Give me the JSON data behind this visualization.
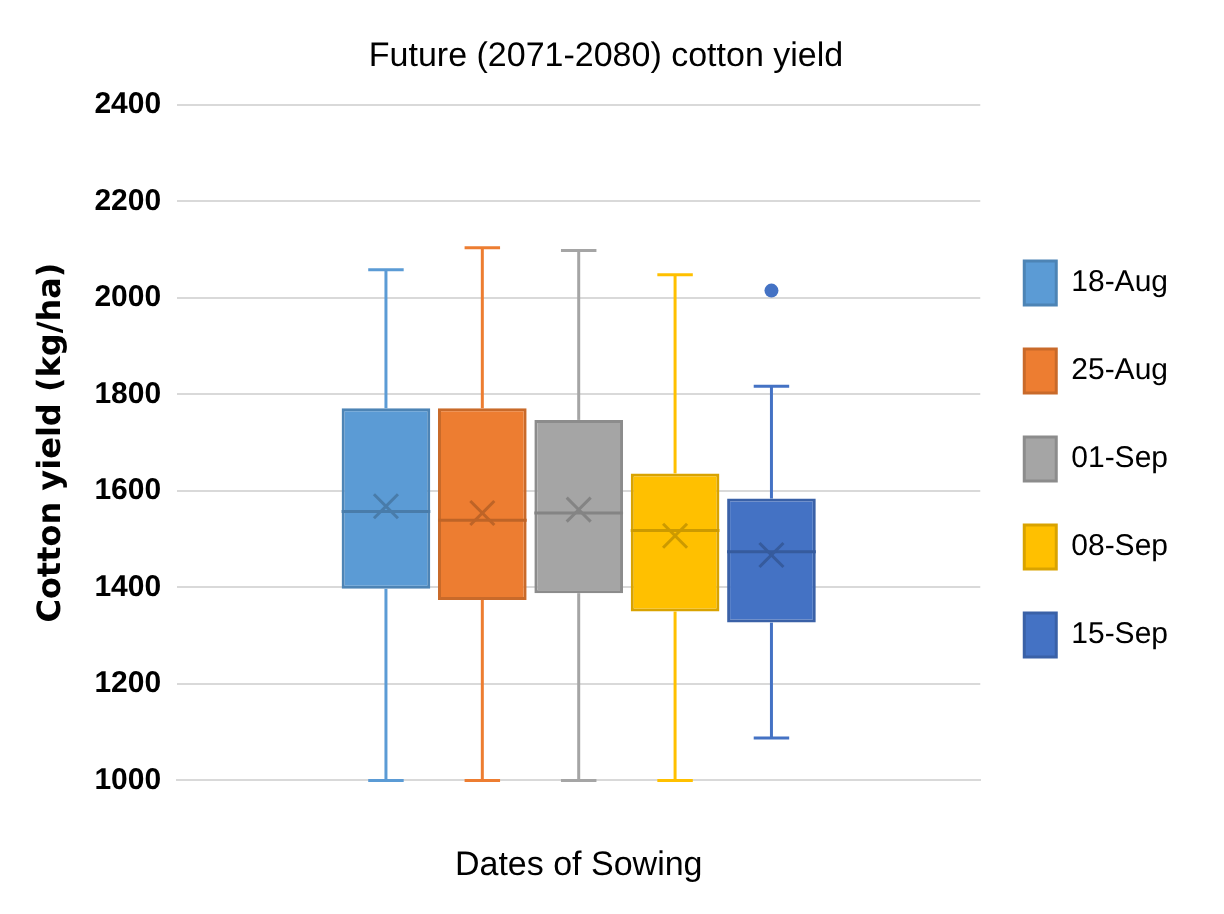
{
  "chart_data": {
    "type": "box",
    "title": "Future (2071-2080) cotton yield",
    "xlabel": "Dates of Sowing",
    "ylabel": "Cotton yield (kg/ha)",
    "categories": [
      null
    ],
    "series": [
      {
        "name": "18-Aug",
        "color": "#5b9bd5",
        "boxes": [
          {
            "low": 1000,
            "q1": 1397,
            "median": 1557,
            "q3": 1771,
            "high": 2058,
            "mean": 1568
          }
        ]
      },
      {
        "name": "25-Aug",
        "color": "#ed7d31",
        "boxes": [
          {
            "low": 1000,
            "q1": 1374,
            "median": 1539,
            "q3": 1771,
            "high": 2104,
            "mean": 1554
          }
        ]
      },
      {
        "name": "01-Sep",
        "color": "#a5a5a5",
        "boxes": [
          {
            "low": 1000,
            "q1": 1388,
            "median": 1554,
            "q3": 1747,
            "high": 2098,
            "mean": 1561
          }
        ]
      },
      {
        "name": "08-Sep",
        "color": "#ffc000",
        "boxes": [
          {
            "low": 1000,
            "q1": 1350,
            "median": 1518,
            "q3": 1636,
            "high": 2048,
            "mean": 1507
          }
        ]
      },
      {
        "name": "15-Sep",
        "color": "#4472c4",
        "boxes": [
          {
            "low": 1088,
            "q1": 1327,
            "median": 1474,
            "q3": 1584,
            "high": 1817,
            "mean": 1467,
            "outliers": [
              2015
            ]
          }
        ]
      }
    ],
    "ylim": [
      1000,
      2400
    ],
    "yticks": [
      1000,
      1200,
      1400,
      1600,
      1800,
      2000,
      2200,
      2400
    ],
    "grid": "y",
    "legend": "right"
  }
}
